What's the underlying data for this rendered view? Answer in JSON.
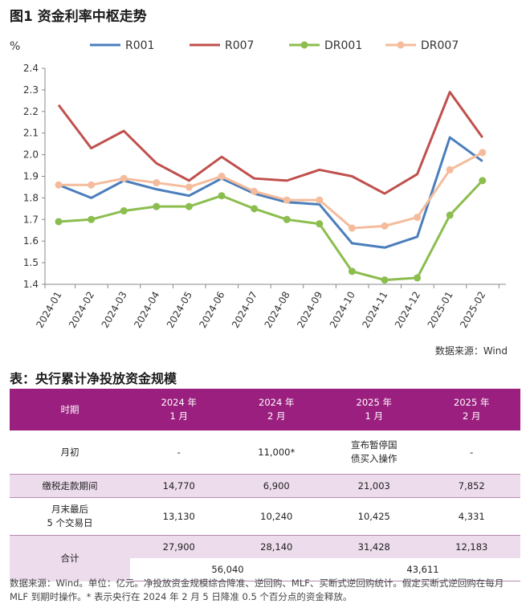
{
  "figure_title": "图1  资金利率中枢走势",
  "source": "数据来源：Wind",
  "chart_data": {
    "type": "line",
    "ylabel": "%",
    "ylim": [
      1.4,
      2.4
    ],
    "yticks": [
      "1.4",
      "1.5",
      "1.6",
      "1.7",
      "1.8",
      "1.9",
      "2.0",
      "2.1",
      "2.2",
      "2.3",
      "2.4"
    ],
    "categories": [
      "2024-01",
      "2024-02",
      "2024-03",
      "2024-04",
      "2024-05",
      "2024-06",
      "2024-07",
      "2024-08",
      "2024-09",
      "2024-10",
      "2024-11",
      "2024-12",
      "2025-01",
      "2025-02"
    ],
    "legend_position": "top",
    "series": [
      {
        "name": "R001",
        "color": "#4a7ebb",
        "values": [
          1.86,
          1.8,
          1.88,
          1.84,
          1.81,
          1.89,
          1.82,
          1.78,
          1.77,
          1.59,
          1.57,
          1.62,
          2.08,
          1.97
        ]
      },
      {
        "name": "R007",
        "color": "#c0504d",
        "values": [
          2.23,
          2.03,
          2.11,
          1.96,
          1.88,
          1.99,
          1.89,
          1.88,
          1.93,
          1.9,
          1.82,
          1.91,
          2.29,
          2.08
        ]
      },
      {
        "name": "DR001",
        "color": "#8cbd4f",
        "values": [
          1.69,
          1.7,
          1.74,
          1.76,
          1.76,
          1.81,
          1.75,
          1.7,
          1.68,
          1.46,
          1.42,
          1.43,
          1.72,
          1.88
        ]
      },
      {
        "name": "DR007",
        "color": "#f4bc9c",
        "values": [
          1.86,
          1.86,
          1.89,
          1.87,
          1.85,
          1.9,
          1.83,
          1.79,
          1.79,
          1.66,
          1.67,
          1.71,
          1.93,
          2.01
        ]
      }
    ]
  },
  "table": {
    "title": "表：央行累计净投放资金规模",
    "header": {
      "period": "时期",
      "c1_year": "2024 年",
      "c1_month": "1 月",
      "c2_year": "2024 年",
      "c2_month": "2 月",
      "c3_year": "2025 年",
      "c3_month": "1 月",
      "c4_year": "2025 年",
      "c4_month": "2 月"
    },
    "rows": {
      "start": {
        "label": "月初",
        "v1": "-",
        "v2": "11,000*",
        "v3a": "宣布暂停国",
        "v3b": "债买入操作",
        "v4": "-"
      },
      "tax": {
        "label": "缴税走款期间",
        "v1": "14,770",
        "v2": "6,900",
        "v3": "21,003",
        "v4": "7,852"
      },
      "end": {
        "label_a": "月末最后",
        "label_b": "5 个交易日",
        "v1": "13,130",
        "v2": "10,240",
        "v3": "10,425",
        "v4": "4,331"
      },
      "total": {
        "label": "合计",
        "v1": "27,900",
        "v2": "28,140",
        "v3": "31,428",
        "v4": "12,183",
        "sum2024": "56,040",
        "sum2025": "43,611"
      }
    },
    "notes": "数据来源：Wind。单位：亿元。净投放资金规模综合降准、逆回购、MLF、买断式逆回购统计。假定买断式逆回购在每月 MLF 到期时操作。* 表示央行在 2024 年 2 月 5 日降准 0.5 个百分点的资金释放。"
  }
}
